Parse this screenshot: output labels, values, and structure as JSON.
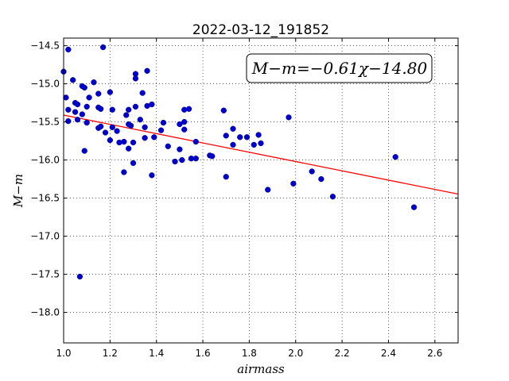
{
  "chart_data": {
    "type": "scatter",
    "title": "2022-03-12_191852",
    "xlabel": "airmass",
    "ylabel": "M−m",
    "xlim": [
      1.0,
      2.7
    ],
    "ylim": [
      -18.4,
      -14.4
    ],
    "y_inverted": true,
    "grid": true,
    "x_ticks": [
      1.0,
      1.2,
      1.4,
      1.6,
      1.8,
      2.0,
      2.2,
      2.4,
      2.6
    ],
    "x_tick_labels": [
      "1.0",
      "1.2",
      "1.4",
      "1.6",
      "1.8",
      "2.0",
      "2.2",
      "2.4",
      "2.6"
    ],
    "y_ticks": [
      -14.5,
      -15.0,
      -15.5,
      -16.0,
      -16.5,
      -17.0,
      -17.5,
      -18.0
    ],
    "y_tick_labels": [
      "−14.5",
      "−15.0",
      "−15.5",
      "−16.0",
      "−16.5",
      "−17.0",
      "−17.5",
      "−18.0"
    ],
    "fit": {
      "slope": -0.61,
      "intercept": -14.8,
      "color": "#ff0000"
    },
    "legend_text": "M−m=−0.61χ−14.80",
    "legend_location": "top-right",
    "point_color": "#0000cc",
    "points": [
      [
        1.0,
        -14.84
      ],
      [
        1.01,
        -15.18
      ],
      [
        1.02,
        -14.55
      ],
      [
        1.02,
        -15.34
      ],
      [
        1.02,
        -15.49
      ],
      [
        1.04,
        -14.95
      ],
      [
        1.05,
        -15.37
      ],
      [
        1.05,
        -15.25
      ],
      [
        1.06,
        -15.27
      ],
      [
        1.06,
        -15.47
      ],
      [
        1.07,
        -17.53
      ],
      [
        1.08,
        -15.03
      ],
      [
        1.08,
        -15.4
      ],
      [
        1.09,
        -15.05
      ],
      [
        1.09,
        -15.88
      ],
      [
        1.1,
        -15.51
      ],
      [
        1.1,
        -15.3
      ],
      [
        1.11,
        -15.18
      ],
      [
        1.13,
        -14.98
      ],
      [
        1.15,
        -15.13
      ],
      [
        1.15,
        -15.31
      ],
      [
        1.15,
        -15.58
      ],
      [
        1.16,
        -15.33
      ],
      [
        1.16,
        -15.56
      ],
      [
        1.17,
        -14.52
      ],
      [
        1.18,
        -15.64
      ],
      [
        1.2,
        -15.74
      ],
      [
        1.2,
        -15.11
      ],
      [
        1.21,
        -15.57
      ],
      [
        1.21,
        -15.34
      ],
      [
        1.23,
        -15.62
      ],
      [
        1.24,
        -15.77
      ],
      [
        1.26,
        -16.16
      ],
      [
        1.26,
        -15.76
      ],
      [
        1.27,
        -15.41
      ],
      [
        1.28,
        -15.53
      ],
      [
        1.28,
        -15.85
      ],
      [
        1.28,
        -15.34
      ],
      [
        1.29,
        -15.55
      ],
      [
        1.3,
        -16.04
      ],
      [
        1.3,
        -15.77
      ],
      [
        1.31,
        -14.87
      ],
      [
        1.31,
        -14.93
      ],
      [
        1.31,
        -15.3
      ],
      [
        1.33,
        -15.47
      ],
      [
        1.34,
        -15.12
      ],
      [
        1.35,
        -15.71
      ],
      [
        1.35,
        -15.57
      ],
      [
        1.36,
        -14.83
      ],
      [
        1.36,
        -15.29
      ],
      [
        1.38,
        -15.27
      ],
      [
        1.38,
        -16.2
      ],
      [
        1.39,
        -15.7
      ],
      [
        1.42,
        -15.61
      ],
      [
        1.43,
        -15.51
      ],
      [
        1.45,
        -15.82
      ],
      [
        1.48,
        -16.02
      ],
      [
        1.5,
        -15.53
      ],
      [
        1.5,
        -15.86
      ],
      [
        1.51,
        -16.0
      ],
      [
        1.52,
        -15.34
      ],
      [
        1.52,
        -15.5
      ],
      [
        1.52,
        -15.6
      ],
      [
        1.54,
        -15.33
      ],
      [
        1.55,
        -15.98
      ],
      [
        1.57,
        -15.98
      ],
      [
        1.57,
        -15.76
      ],
      [
        1.63,
        -15.94
      ],
      [
        1.64,
        -15.95
      ],
      [
        1.69,
        -15.35
      ],
      [
        1.7,
        -15.68
      ],
      [
        1.7,
        -16.22
      ],
      [
        1.73,
        -15.59
      ],
      [
        1.73,
        -15.8
      ],
      [
        1.76,
        -15.7
      ],
      [
        1.79,
        -15.7
      ],
      [
        1.82,
        -15.8
      ],
      [
        1.84,
        -15.67
      ],
      [
        1.85,
        -15.78
      ],
      [
        1.88,
        -16.39
      ],
      [
        1.97,
        -15.44
      ],
      [
        1.99,
        -16.31
      ],
      [
        2.07,
        -16.15
      ],
      [
        2.11,
        -16.25
      ],
      [
        2.16,
        -16.48
      ],
      [
        2.43,
        -15.96
      ],
      [
        2.51,
        -16.62
      ]
    ]
  }
}
